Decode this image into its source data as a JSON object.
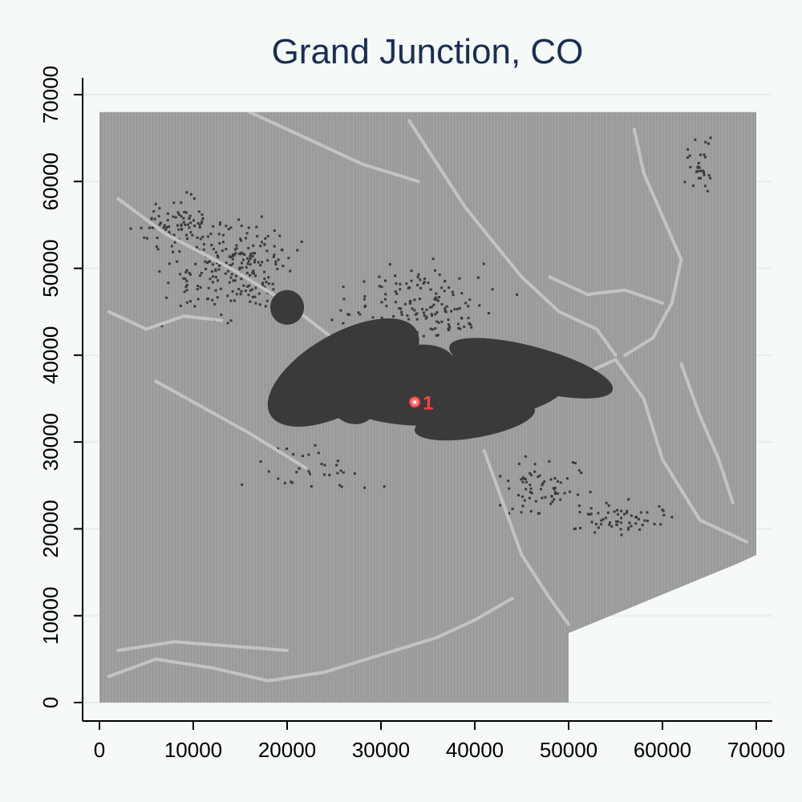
{
  "chart_data": {
    "type": "map",
    "title": "Grand Junction, CO",
    "xlim": [
      0,
      70000
    ],
    "ylim": [
      0,
      70000
    ],
    "x_ticks": [
      "0",
      "10000",
      "20000",
      "30000",
      "40000",
      "50000",
      "60000",
      "70000"
    ],
    "y_ticks": [
      "0",
      "10000",
      "20000",
      "30000",
      "40000",
      "50000",
      "60000",
      "70000"
    ],
    "grid": "horizontal",
    "study_area_outline": [
      [
        0,
        0
      ],
      [
        0,
        68000
      ],
      [
        70000,
        68000
      ],
      [
        70000,
        17000
      ],
      [
        68000,
        16000
      ],
      [
        50000,
        8000
      ],
      [
        50000,
        0
      ]
    ],
    "urban_areas": [
      {
        "x": 38000,
        "y": 36000,
        "rx": 12000,
        "ry": 4000,
        "rotate": 5
      },
      {
        "x": 26000,
        "y": 38000,
        "rx": 9000,
        "ry": 4500,
        "rotate": 30
      },
      {
        "x": 46000,
        "y": 38500,
        "rx": 9000,
        "ry": 2500,
        "rotate": -15
      },
      {
        "x": 40000,
        "y": 32500,
        "rx": 6500,
        "ry": 2000,
        "rotate": 10
      },
      {
        "x": 20000,
        "y": 45500,
        "rx": 1800,
        "ry": 2000,
        "rotate": 0
      },
      {
        "x": 27000,
        "y": 35500,
        "rx": 2800,
        "ry": 3500,
        "rotate": 20
      },
      {
        "x": 33000,
        "y": 38000,
        "rx": 5000,
        "ry": 3000,
        "rotate": 15
      }
    ],
    "rivers": [
      [
        [
          2000,
          58000
        ],
        [
          7000,
          54000
        ],
        [
          14000,
          50000
        ],
        [
          20000,
          46000
        ],
        [
          26000,
          41000
        ],
        [
          31000,
          37000
        ],
        [
          36000,
          35500
        ],
        [
          41000,
          35000
        ],
        [
          46000,
          35500
        ],
        [
          51000,
          37500
        ],
        [
          55000,
          39500
        ],
        [
          58000,
          35000
        ],
        [
          60000,
          28000
        ],
        [
          64000,
          21000
        ],
        [
          69000,
          18500
        ]
      ],
      [
        [
          33000,
          67000
        ],
        [
          36000,
          62000
        ],
        [
          39000,
          57000
        ],
        [
          42000,
          53000
        ],
        [
          45000,
          49000
        ],
        [
          49000,
          45000
        ],
        [
          53000,
          43000
        ],
        [
          55000,
          40000
        ]
      ],
      [
        [
          57000,
          66000
        ],
        [
          58000,
          61000
        ],
        [
          60000,
          56000
        ],
        [
          62000,
          51000
        ],
        [
          61000,
          46000
        ],
        [
          59000,
          42000
        ],
        [
          56000,
          40000
        ]
      ],
      [
        [
          16000,
          68000
        ],
        [
          22000,
          65000
        ],
        [
          28000,
          62000
        ],
        [
          34000,
          60000
        ]
      ],
      [
        [
          1000,
          3000
        ],
        [
          6000,
          5000
        ],
        [
          12000,
          4000
        ],
        [
          18000,
          2500
        ],
        [
          24000,
          3500
        ],
        [
          30000,
          5500
        ],
        [
          36000,
          7500
        ],
        [
          40000,
          9500
        ],
        [
          44000,
          12000
        ]
      ],
      [
        [
          2000,
          6000
        ],
        [
          8000,
          7000
        ],
        [
          14000,
          6500
        ],
        [
          20000,
          6000
        ]
      ],
      [
        [
          41000,
          29000
        ],
        [
          43000,
          23000
        ],
        [
          45000,
          17000
        ],
        [
          48000,
          12000
        ],
        [
          50000,
          9000
        ]
      ],
      [
        [
          62000,
          39000
        ],
        [
          64000,
          33000
        ],
        [
          66000,
          28000
        ],
        [
          67500,
          23000
        ]
      ],
      [
        [
          6000,
          37000
        ],
        [
          11000,
          34000
        ],
        [
          16000,
          31000
        ],
        [
          22000,
          27000
        ]
      ],
      [
        [
          48000,
          49000
        ],
        [
          52000,
          47000
        ],
        [
          56000,
          47500
        ],
        [
          60000,
          46000
        ]
      ],
      [
        [
          1000,
          45000
        ],
        [
          5000,
          43000
        ],
        [
          9000,
          44500
        ],
        [
          13000,
          44000
        ]
      ]
    ],
    "markers": [
      {
        "label": "1",
        "x": 33600,
        "y": 34600,
        "color": "#ff4040"
      }
    ],
    "colors": {
      "terrain": "#9b9b9b",
      "urban": "#3a3a3a",
      "rivers": "#c3c3c3",
      "background": "#f5f9f7",
      "title": "#1b2e52"
    }
  }
}
